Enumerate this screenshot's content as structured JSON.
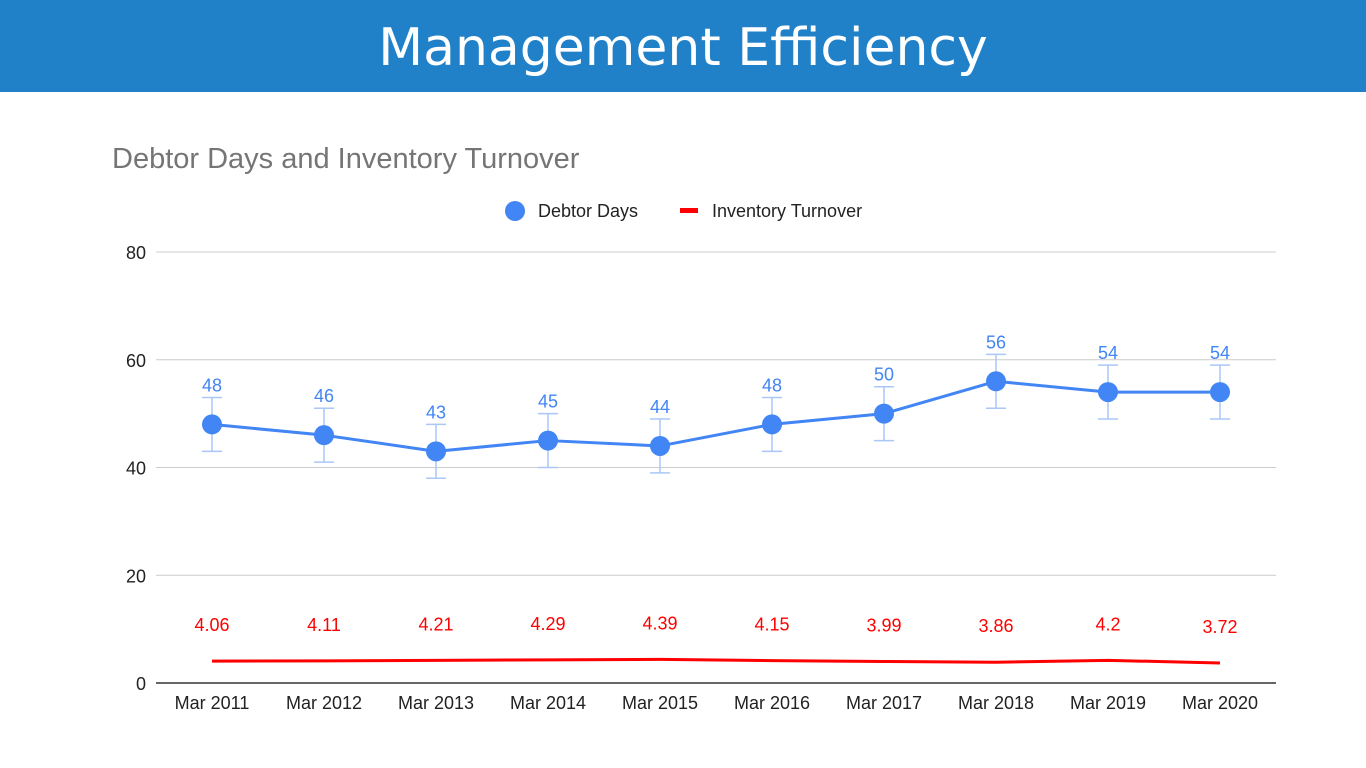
{
  "header": {
    "title": "Management Efficiency"
  },
  "chart_data": {
    "type": "line",
    "title": "Debtor Days and Inventory Turnover",
    "xlabel": "",
    "ylabel": "",
    "ylim": [
      0,
      80
    ],
    "yticks": [
      0,
      20,
      40,
      60,
      80
    ],
    "grid": true,
    "legend_position": "top",
    "categories": [
      "Mar 2011",
      "Mar 2012",
      "Mar 2013",
      "Mar 2014",
      "Mar 2015",
      "Mar 2016",
      "Mar 2017",
      "Mar 2018",
      "Mar 2019",
      "Mar 2020"
    ],
    "series": [
      {
        "name": "Debtor Days",
        "color": "#4285f4",
        "marker": "circle",
        "error_bars": true,
        "error": 5,
        "values": [
          48,
          46,
          43,
          45,
          44,
          48,
          50,
          56,
          54,
          54
        ],
        "labels": [
          "48",
          "46",
          "43",
          "45",
          "44",
          "48",
          "50",
          "56",
          "54",
          "54"
        ]
      },
      {
        "name": "Inventory Turnover",
        "color": "#ff0000",
        "marker": "none",
        "values": [
          4.06,
          4.11,
          4.21,
          4.29,
          4.39,
          4.15,
          3.99,
          3.86,
          4.2,
          3.72
        ],
        "labels": [
          "4.06",
          "4.11",
          "4.21",
          "4.29",
          "4.39",
          "4.15",
          "3.99",
          "3.86",
          "4.2",
          "3.72"
        ]
      }
    ]
  }
}
